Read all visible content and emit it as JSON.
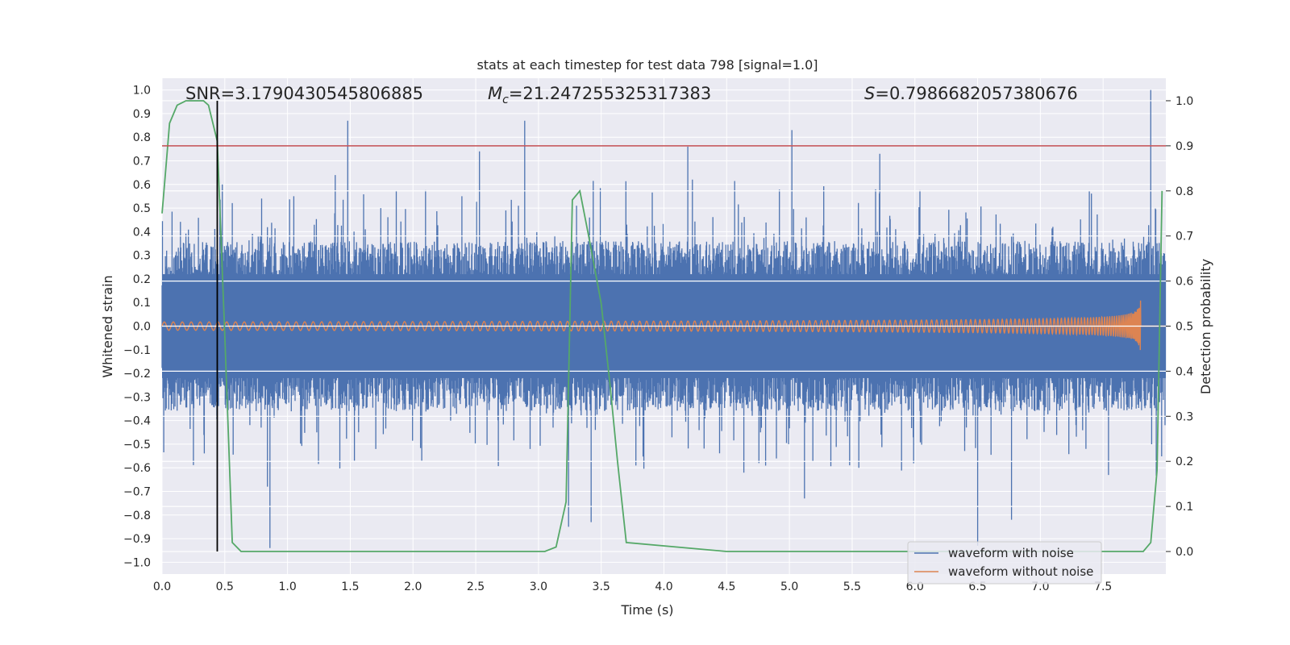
{
  "chart_data": {
    "type": "line",
    "title": "stats at each timestep for test data 798 [signal=1.0]",
    "xlabel": "Time (s)",
    "ylabel_left": "Whitened strain",
    "ylabel_right": "Detection probability",
    "xlim": [
      0.0,
      8.0
    ],
    "ylim_left": [
      -1.05,
      1.05
    ],
    "ylim_right": [
      -0.05,
      1.05
    ],
    "x_ticks": [
      "0.0",
      "0.5",
      "1.0",
      "1.5",
      "2.0",
      "2.5",
      "3.0",
      "3.5",
      "4.0",
      "4.5",
      "5.0",
      "5.5",
      "6.0",
      "6.5",
      "7.0",
      "7.5"
    ],
    "x_tick_values": [
      0.0,
      0.5,
      1.0,
      1.5,
      2.0,
      2.5,
      3.0,
      3.5,
      4.0,
      4.5,
      5.0,
      5.5,
      6.0,
      6.5,
      7.0,
      7.5
    ],
    "y_left_ticks": [
      "1.0",
      "0.9",
      "0.8",
      "0.7",
      "0.6",
      "0.5",
      "0.4",
      "0.3",
      "0.2",
      "0.1",
      "0.0",
      "−0.1",
      "−0.2",
      "−0.3",
      "−0.4",
      "−0.5",
      "−0.6",
      "−0.7",
      "−0.8",
      "−0.9",
      "−1.0"
    ],
    "y_left_tick_values": [
      1.0,
      0.9,
      0.8,
      0.7,
      0.6,
      0.5,
      0.4,
      0.3,
      0.2,
      0.1,
      0.0,
      -0.1,
      -0.2,
      -0.3,
      -0.4,
      -0.5,
      -0.6,
      -0.7,
      -0.8,
      -0.9,
      -1.0
    ],
    "y_right_ticks": [
      "1.0",
      "0.9",
      "0.8",
      "0.7",
      "0.6",
      "0.5",
      "0.4",
      "0.3",
      "0.2",
      "0.1",
      "0.0"
    ],
    "y_right_tick_values": [
      1.0,
      0.9,
      0.8,
      0.7,
      0.6,
      0.5,
      0.4,
      0.3,
      0.2,
      0.1,
      0.0
    ],
    "annotations": {
      "snr_label": "SNR=3.1790430545806885",
      "mc_label_symbol": "M",
      "mc_label_sub": "c",
      "mc_label_value": "=21.247255325317383",
      "s_label_symbol": "S",
      "s_label_value": "=0.7986682057380676"
    },
    "threshold_probability": 0.9,
    "marker_time": 0.44,
    "series": [
      {
        "name": "waveform with noise",
        "color": "#4c72b0",
        "axis": "left",
        "description_points": "noise envelope approx ±0.35 with spikes up to 1.0",
        "spikes": [
          [
            1.48,
            0.87
          ],
          [
            2.89,
            0.87
          ],
          [
            5.02,
            0.83
          ],
          [
            7.88,
            1.0
          ],
          [
            0.86,
            -0.94
          ],
          [
            6.5,
            -0.93
          ],
          [
            3.24,
            -0.85
          ],
          [
            3.42,
            -0.83
          ],
          [
            6.77,
            -0.82
          ],
          [
            0.84,
            -0.68
          ],
          [
            5.12,
            -0.73
          ],
          [
            1.05,
            0.55
          ],
          [
            1.38,
            0.64
          ],
          [
            2.53,
            0.74
          ],
          [
            4.19,
            0.76
          ],
          [
            5.72,
            0.73
          ]
        ]
      },
      {
        "name": "waveform without noise",
        "color": "#dd8452",
        "axis": "left",
        "chirp_end_time": 7.8,
        "chirp_peak_amplitude": 0.14
      },
      {
        "name": "detection probability",
        "color": "#55a868",
        "axis": "right",
        "x": [
          0.0,
          0.03,
          0.06,
          0.12,
          0.19,
          0.26,
          0.33,
          0.37,
          0.44,
          0.5,
          0.56,
          0.63,
          0.8,
          1.5,
          2.5,
          3.05,
          3.14,
          3.22,
          3.27,
          3.33,
          3.4,
          3.5,
          3.57,
          3.63,
          3.7,
          4.5,
          5.5,
          6.5,
          7.5,
          7.82,
          7.88,
          7.93,
          7.97
        ],
        "y": [
          0.75,
          0.85,
          0.95,
          0.99,
          1.0,
          1.0,
          1.0,
          0.99,
          0.91,
          0.48,
          0.02,
          0.0,
          0.0,
          0.0,
          0.0,
          0.0,
          0.01,
          0.11,
          0.78,
          0.8,
          0.7,
          0.55,
          0.37,
          0.2,
          0.02,
          0.0,
          0.0,
          0.0,
          0.0,
          0.0,
          0.02,
          0.18,
          0.8
        ]
      }
    ],
    "legend": {
      "position": "bottom-right",
      "entries": [
        "waveform with noise",
        "waveform without noise"
      ]
    },
    "colors": {
      "background": "#eaeaf2",
      "grid": "#ffffff",
      "noise": "#4c72b0",
      "clean": "#dd8452",
      "probability": "#55a868",
      "threshold": "#c44e52",
      "marker": "#000000"
    }
  }
}
